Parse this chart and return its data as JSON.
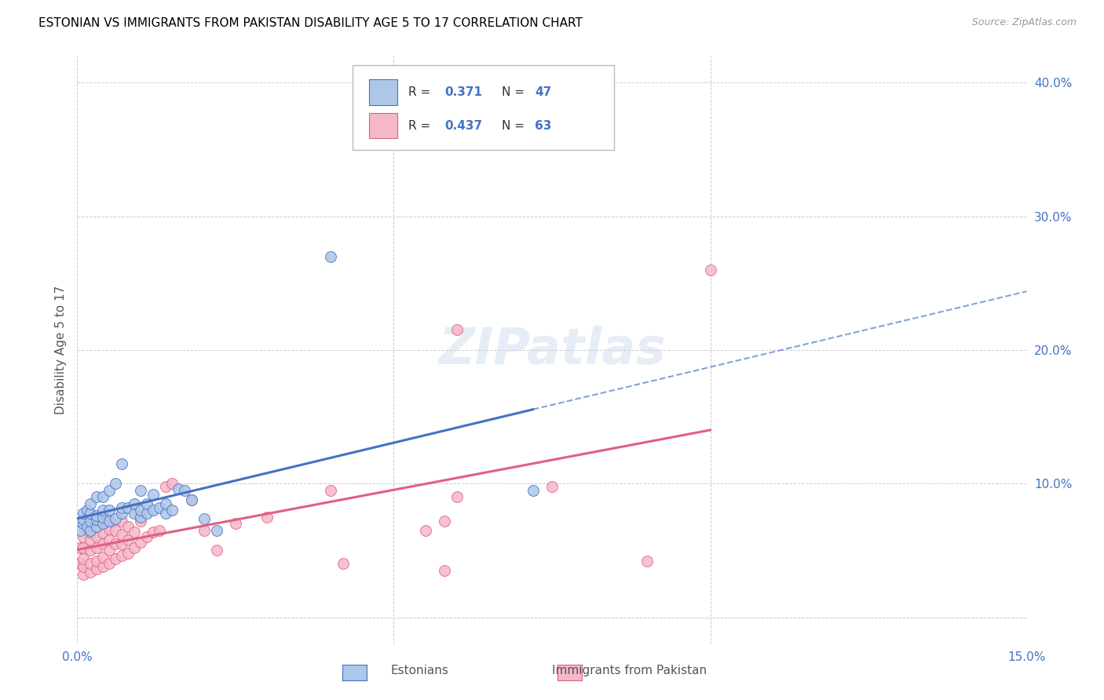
{
  "title": "ESTONIAN VS IMMIGRANTS FROM PAKISTAN DISABILITY AGE 5 TO 17 CORRELATION CHART",
  "source": "Source: ZipAtlas.com",
  "ylabel": "Disability Age 5 to 17",
  "xlim": [
    0.0,
    0.15
  ],
  "ylim": [
    -0.02,
    0.42
  ],
  "xtick_positions": [
    0.0,
    0.05,
    0.1,
    0.15
  ],
  "xtick_labels": [
    "0.0%",
    "",
    "",
    "15.0%"
  ],
  "ytick_positions": [
    0.0,
    0.1,
    0.2,
    0.3,
    0.4
  ],
  "ytick_labels": [
    "",
    "10.0%",
    "20.0%",
    "30.0%",
    "40.0%"
  ],
  "legend_R1": "R = ",
  "legend_R1_val": "0.371",
  "legend_N1": "N = ",
  "legend_N1_val": "47",
  "legend_R2": "R = ",
  "legend_R2_val": "0.437",
  "legend_N2": "N = ",
  "legend_N2_val": "63",
  "group1_label": "Estonians",
  "group2_label": "Immigrants from Pakistan",
  "color1": "#aec6e8",
  "color2": "#f5b8c8",
  "line1_color": "#4472c4",
  "line2_color": "#e06080",
  "watermark": "ZIPatlas",
  "background_color": "#ffffff",
  "grid_color": "#cccccc",
  "estonians_x": [
    0.0005,
    0.001,
    0.001,
    0.001,
    0.0015,
    0.0015,
    0.002,
    0.002,
    0.002,
    0.002,
    0.003,
    0.003,
    0.003,
    0.003,
    0.004,
    0.004,
    0.004,
    0.004,
    0.005,
    0.005,
    0.005,
    0.006,
    0.006,
    0.007,
    0.007,
    0.007,
    0.008,
    0.009,
    0.009,
    0.01,
    0.01,
    0.01,
    0.011,
    0.011,
    0.012,
    0.012,
    0.013,
    0.014,
    0.014,
    0.015,
    0.016,
    0.017,
    0.018,
    0.02,
    0.022,
    0.04,
    0.072
  ],
  "estonians_y": [
    0.065,
    0.07,
    0.073,
    0.078,
    0.068,
    0.08,
    0.065,
    0.072,
    0.078,
    0.085,
    0.068,
    0.073,
    0.076,
    0.09,
    0.07,
    0.075,
    0.08,
    0.09,
    0.072,
    0.08,
    0.095,
    0.074,
    0.1,
    0.078,
    0.082,
    0.115,
    0.082,
    0.078,
    0.085,
    0.075,
    0.08,
    0.095,
    0.078,
    0.085,
    0.08,
    0.092,
    0.082,
    0.078,
    0.085,
    0.08,
    0.096,
    0.095,
    0.088,
    0.074,
    0.065,
    0.27,
    0.095
  ],
  "pakistan_x": [
    0.0005,
    0.0005,
    0.001,
    0.001,
    0.001,
    0.001,
    0.001,
    0.002,
    0.002,
    0.002,
    0.002,
    0.002,
    0.002,
    0.003,
    0.003,
    0.003,
    0.003,
    0.003,
    0.004,
    0.004,
    0.004,
    0.004,
    0.004,
    0.004,
    0.005,
    0.005,
    0.005,
    0.005,
    0.005,
    0.006,
    0.006,
    0.006,
    0.007,
    0.007,
    0.007,
    0.007,
    0.008,
    0.008,
    0.008,
    0.009,
    0.009,
    0.01,
    0.01,
    0.011,
    0.012,
    0.013,
    0.014,
    0.015,
    0.018,
    0.02,
    0.022,
    0.025,
    0.03,
    0.04,
    0.042,
    0.055,
    0.058,
    0.06,
    0.058,
    0.06,
    0.075,
    0.09,
    0.1
  ],
  "pakistan_y": [
    0.04,
    0.052,
    0.032,
    0.038,
    0.044,
    0.052,
    0.06,
    0.034,
    0.04,
    0.05,
    0.058,
    0.064,
    0.07,
    0.036,
    0.042,
    0.052,
    0.06,
    0.068,
    0.038,
    0.045,
    0.055,
    0.063,
    0.07,
    0.075,
    0.04,
    0.05,
    0.058,
    0.066,
    0.073,
    0.044,
    0.055,
    0.065,
    0.046,
    0.055,
    0.062,
    0.072,
    0.048,
    0.058,
    0.068,
    0.052,
    0.064,
    0.056,
    0.072,
    0.06,
    0.064,
    0.065,
    0.098,
    0.1,
    0.088,
    0.065,
    0.05,
    0.07,
    0.075,
    0.095,
    0.04,
    0.065,
    0.035,
    0.215,
    0.072,
    0.09,
    0.098,
    0.042,
    0.26
  ]
}
